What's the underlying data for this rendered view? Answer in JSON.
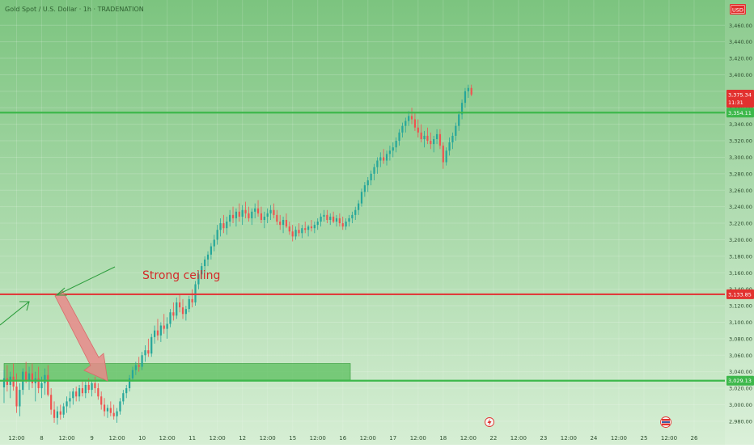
{
  "header": {
    "symbol_title": "Gold Spot / U.S. Dollar · 1h · TRADENATION",
    "currency_badge": "USD"
  },
  "events": {
    "flash_icon": "lightning-icon",
    "flag_icon": "flag-icon"
  },
  "colors": {
    "background_top": "#7cc47f",
    "background_bottom": "#d6eed4",
    "candle_up": "#26a69a",
    "candle_down": "#ef5350",
    "support_line": "#3db84b",
    "resistance_line": "#e03c3c",
    "price_badge_red": "#e2312f",
    "price_badge_green": "#3db84b",
    "zone_fill": "#5bbf5e",
    "arrow_fill": "#e88a8a",
    "trend_arrow": "#2e9e3e",
    "annotation_text": "#d42a2a"
  },
  "chart_data": {
    "type": "candlestick",
    "title": "Gold Spot / U.S. Dollar · 1h · TRADENATION",
    "currency": "USD",
    "xlabel": "",
    "ylabel": "",
    "ylim": [
      2973,
      3473
    ],
    "y_ticks": [
      2980,
      3000,
      3020,
      3040,
      3060,
      3080,
      3100,
      3120,
      3140,
      3160,
      3180,
      3200,
      3220,
      3240,
      3260,
      3280,
      3300,
      3320,
      3340,
      3360,
      3380,
      3400,
      3420,
      3440,
      3460
    ],
    "y_tick_labels": [
      "2,980.00",
      "3,000.00",
      "3,020.00",
      "3,040.00",
      "3,060.00",
      "3,080.00",
      "3,100.00",
      "3,120.00",
      "3,140.00",
      "3,160.00",
      "3,180.00",
      "3,200.00",
      "3,220.00",
      "3,240.00",
      "3,260.00",
      "3,280.00",
      "3,300.00",
      "3,320.00",
      "3,340.00",
      "3,360.00",
      "3,380.00",
      "3,400.00",
      "3,420.00",
      "3,440.00",
      "3,460.00"
    ],
    "x_tick_labels": [
      "12:00",
      "8",
      "12:00",
      "9",
      "12:00",
      "10",
      "12:00",
      "11",
      "12:00",
      "12",
      "12:00",
      "15",
      "12:00",
      "16",
      "12:00",
      "17",
      "12:00",
      "18",
      "12:00",
      "22",
      "12:00",
      "23",
      "12:00",
      "24",
      "12:00",
      "25",
      "12:00",
      "26"
    ],
    "x_tick_index": [
      1,
      3,
      5,
      7,
      9,
      11,
      13,
      15,
      17,
      19,
      21,
      23,
      25,
      27,
      29,
      31,
      33,
      35,
      37,
      39,
      41,
      43,
      45,
      47,
      49,
      51,
      53,
      55
    ],
    "x_range": [
      0,
      57
    ],
    "current_price_label": "3,375.34",
    "countdown_label": "11:31",
    "levels": [
      {
        "name": "support",
        "value": 3354.11,
        "label": "3,354.11",
        "color": "#3db84b"
      },
      {
        "name": "resistance",
        "value": 3133.85,
        "label": "3,133.85",
        "color": "#e03c3c"
      },
      {
        "name": "base",
        "value": 3029.13,
        "label": "3,029.13",
        "color": "#3db84b"
      }
    ],
    "zone": {
      "from_x": 0,
      "to_x": 27.6,
      "y_low": 3030,
      "y_high": 3050
    },
    "annotation": {
      "text": "Strong ceiling",
      "x": 11.0,
      "y": 3160
    },
    "candles": [
      [
        0.0,
        3021,
        3042,
        3002,
        3032
      ],
      [
        0.25,
        3032,
        3048,
        3016,
        3024
      ],
      [
        0.5,
        3024,
        3040,
        3008,
        3034
      ],
      [
        0.75,
        3034,
        3050,
        3017,
        3022
      ],
      [
        1.0,
        3022,
        3038,
        2990,
        2998
      ],
      [
        1.25,
        2998,
        3026,
        2986,
        3018
      ],
      [
        1.5,
        3018,
        3044,
        3012,
        3040
      ],
      [
        1.75,
        3040,
        3052,
        3026,
        3030
      ],
      [
        2.0,
        3030,
        3046,
        3018,
        3038
      ],
      [
        2.25,
        3038,
        3050,
        3020,
        3026
      ],
      [
        2.5,
        3026,
        3040,
        3004,
        3032
      ],
      [
        2.75,
        3032,
        3046,
        3014,
        3020
      ],
      [
        3.0,
        3020,
        3034,
        3008,
        3026
      ],
      [
        3.25,
        3026,
        3044,
        3012,
        3036
      ],
      [
        3.5,
        3036,
        3048,
        3010,
        3012
      ],
      [
        3.75,
        3012,
        3020,
        2988,
        2994
      ],
      [
        4.0,
        2994,
        3004,
        2978,
        2984
      ],
      [
        4.25,
        2984,
        2998,
        2976,
        2992
      ],
      [
        4.5,
        2992,
        3000,
        2982,
        2988
      ],
      [
        4.75,
        2988,
        3002,
        2984,
        2998
      ],
      [
        5.0,
        2998,
        3010,
        2990,
        3004
      ],
      [
        5.25,
        3004,
        3016,
        2996,
        3008
      ],
      [
        5.5,
        3008,
        3020,
        3000,
        3016
      ],
      [
        5.75,
        3016,
        3022,
        3004,
        3010
      ],
      [
        6.0,
        3010,
        3024,
        3004,
        3020
      ],
      [
        6.25,
        3020,
        3028,
        3010,
        3014
      ],
      [
        6.5,
        3014,
        3028,
        3008,
        3024
      ],
      [
        6.75,
        3024,
        3032,
        3014,
        3018
      ],
      [
        7.0,
        3018,
        3030,
        3010,
        3026
      ],
      [
        7.25,
        3026,
        3034,
        3014,
        3020
      ],
      [
        7.5,
        3020,
        3026,
        3006,
        3010
      ],
      [
        7.75,
        3010,
        3016,
        2994,
        3000
      ],
      [
        8.0,
        3000,
        3008,
        2986,
        2992
      ],
      [
        8.25,
        2992,
        3000,
        2984,
        2996
      ],
      [
        8.5,
        2996,
        3004,
        2986,
        2990
      ],
      [
        8.75,
        2990,
        3000,
        2982,
        2986
      ],
      [
        9.0,
        2986,
        2996,
        2978,
        2992
      ],
      [
        9.25,
        2992,
        3008,
        2988,
        3004
      ],
      [
        9.5,
        3004,
        3018,
        3000,
        3014
      ],
      [
        9.75,
        3014,
        3024,
        3008,
        3020
      ],
      [
        10.0,
        3020,
        3036,
        3016,
        3032
      ],
      [
        10.25,
        3032,
        3046,
        3028,
        3042
      ],
      [
        10.5,
        3042,
        3052,
        3036,
        3048
      ],
      [
        10.75,
        3048,
        3058,
        3040,
        3046
      ],
      [
        11.0,
        3046,
        3064,
        3042,
        3060
      ],
      [
        11.25,
        3060,
        3072,
        3052,
        3066
      ],
      [
        11.5,
        3066,
        3080,
        3058,
        3062
      ],
      [
        11.75,
        3062,
        3086,
        3058,
        3082
      ],
      [
        12.0,
        3082,
        3096,
        3074,
        3090
      ],
      [
        12.25,
        3090,
        3104,
        3078,
        3084
      ],
      [
        12.5,
        3084,
        3100,
        3076,
        3096
      ],
      [
        12.75,
        3096,
        3110,
        3086,
        3092
      ],
      [
        13.0,
        3092,
        3106,
        3080,
        3098
      ],
      [
        13.25,
        3098,
        3116,
        3094,
        3112
      ],
      [
        13.5,
        3112,
        3124,
        3102,
        3108
      ],
      [
        13.75,
        3108,
        3130,
        3104,
        3124
      ],
      [
        14.0,
        3124,
        3134,
        3112,
        3118
      ],
      [
        14.25,
        3118,
        3128,
        3104,
        3110
      ],
      [
        14.5,
        3110,
        3120,
        3102,
        3116
      ],
      [
        14.75,
        3116,
        3132,
        3112,
        3128
      ],
      [
        15.0,
        3128,
        3140,
        3118,
        3124
      ],
      [
        15.25,
        3124,
        3150,
        3120,
        3146
      ],
      [
        15.5,
        3146,
        3162,
        3140,
        3158
      ],
      [
        15.75,
        3158,
        3172,
        3152,
        3168
      ],
      [
        16.0,
        3168,
        3180,
        3160,
        3176
      ],
      [
        16.25,
        3176,
        3186,
        3168,
        3182
      ],
      [
        16.5,
        3182,
        3196,
        3176,
        3192
      ],
      [
        16.75,
        3192,
        3206,
        3186,
        3200
      ],
      [
        17.0,
        3200,
        3218,
        3194,
        3212
      ],
      [
        17.25,
        3212,
        3226,
        3204,
        3220
      ],
      [
        17.5,
        3220,
        3230,
        3208,
        3214
      ],
      [
        17.75,
        3214,
        3228,
        3206,
        3222
      ],
      [
        18.0,
        3222,
        3236,
        3216,
        3230
      ],
      [
        18.25,
        3230,
        3240,
        3220,
        3226
      ],
      [
        18.5,
        3226,
        3238,
        3216,
        3234
      ],
      [
        18.75,
        3234,
        3244,
        3222,
        3228
      ],
      [
        19.0,
        3228,
        3242,
        3218,
        3236
      ],
      [
        19.25,
        3236,
        3246,
        3226,
        3232
      ],
      [
        19.5,
        3232,
        3240,
        3222,
        3226
      ],
      [
        19.75,
        3226,
        3238,
        3218,
        3234
      ],
      [
        20.0,
        3234,
        3244,
        3226,
        3238
      ],
      [
        20.25,
        3238,
        3248,
        3228,
        3232
      ],
      [
        20.5,
        3232,
        3240,
        3220,
        3224
      ],
      [
        20.75,
        3224,
        3234,
        3214,
        3228
      ],
      [
        21.0,
        3228,
        3238,
        3220,
        3232
      ],
      [
        21.25,
        3232,
        3242,
        3224,
        3236
      ],
      [
        21.5,
        3236,
        3244,
        3226,
        3230
      ],
      [
        21.75,
        3230,
        3236,
        3218,
        3222
      ],
      [
        22.0,
        3222,
        3230,
        3212,
        3218
      ],
      [
        22.25,
        3218,
        3228,
        3208,
        3224
      ],
      [
        22.5,
        3224,
        3232,
        3214,
        3216
      ],
      [
        22.75,
        3216,
        3222,
        3206,
        3210
      ],
      [
        23.0,
        3210,
        3218,
        3198,
        3204
      ],
      [
        23.25,
        3204,
        3216,
        3200,
        3212
      ],
      [
        23.5,
        3212,
        3220,
        3204,
        3208
      ],
      [
        23.75,
        3208,
        3218,
        3202,
        3214
      ],
      [
        24.0,
        3214,
        3222,
        3208,
        3212
      ],
      [
        24.25,
        3212,
        3218,
        3204,
        3216
      ],
      [
        24.5,
        3216,
        3224,
        3210,
        3214
      ],
      [
        24.75,
        3214,
        3222,
        3208,
        3218
      ],
      [
        25.0,
        3218,
        3226,
        3212,
        3222
      ],
      [
        25.25,
        3222,
        3232,
        3216,
        3228
      ],
      [
        25.5,
        3228,
        3236,
        3222,
        3230
      ],
      [
        25.75,
        3230,
        3236,
        3220,
        3224
      ],
      [
        26.0,
        3224,
        3232,
        3218,
        3228
      ],
      [
        26.25,
        3228,
        3234,
        3220,
        3222
      ],
      [
        26.5,
        3222,
        3230,
        3216,
        3226
      ],
      [
        26.75,
        3226,
        3232,
        3216,
        3220
      ],
      [
        27.0,
        3220,
        3228,
        3212,
        3216
      ],
      [
        27.25,
        3216,
        3226,
        3212,
        3222
      ],
      [
        27.5,
        3222,
        3230,
        3216,
        3226
      ],
      [
        27.75,
        3226,
        3234,
        3220,
        3230
      ],
      [
        28.0,
        3230,
        3240,
        3224,
        3236
      ],
      [
        28.25,
        3236,
        3248,
        3230,
        3244
      ],
      [
        28.5,
        3244,
        3262,
        3240,
        3258
      ],
      [
        28.75,
        3258,
        3270,
        3252,
        3266
      ],
      [
        29.0,
        3266,
        3276,
        3258,
        3272
      ],
      [
        29.25,
        3272,
        3284,
        3266,
        3280
      ],
      [
        29.5,
        3280,
        3292,
        3272,
        3288
      ],
      [
        29.75,
        3288,
        3300,
        3280,
        3296
      ],
      [
        30.0,
        3296,
        3306,
        3288,
        3300
      ],
      [
        30.25,
        3300,
        3310,
        3292,
        3296
      ],
      [
        30.5,
        3296,
        3308,
        3290,
        3304
      ],
      [
        30.75,
        3304,
        3314,
        3296,
        3308
      ],
      [
        31.0,
        3308,
        3318,
        3300,
        3312
      ],
      [
        31.25,
        3312,
        3324,
        3306,
        3320
      ],
      [
        31.5,
        3320,
        3334,
        3314,
        3330
      ],
      [
        31.75,
        3330,
        3342,
        3324,
        3338
      ],
      [
        32.0,
        3338,
        3348,
        3330,
        3344
      ],
      [
        32.25,
        3344,
        3356,
        3338,
        3350
      ],
      [
        32.5,
        3350,
        3360,
        3340,
        3346
      ],
      [
        32.75,
        3346,
        3354,
        3332,
        3336
      ],
      [
        33.0,
        3336,
        3346,
        3324,
        3330
      ],
      [
        33.25,
        3330,
        3340,
        3318,
        3322
      ],
      [
        33.5,
        3322,
        3332,
        3312,
        3326
      ],
      [
        33.75,
        3326,
        3336,
        3316,
        3320
      ],
      [
        34.0,
        3320,
        3330,
        3310,
        3316
      ],
      [
        34.25,
        3316,
        3326,
        3306,
        3322
      ],
      [
        34.5,
        3322,
        3334,
        3316,
        3328
      ],
      [
        34.75,
        3328,
        3334,
        3310,
        3314
      ],
      [
        35.0,
        3314,
        3318,
        3286,
        3294
      ],
      [
        35.25,
        3294,
        3312,
        3290,
        3308
      ],
      [
        35.5,
        3308,
        3324,
        3302,
        3318
      ],
      [
        35.75,
        3318,
        3330,
        3310,
        3326
      ],
      [
        36.0,
        3326,
        3342,
        3320,
        3338
      ],
      [
        36.25,
        3338,
        3356,
        3332,
        3352
      ],
      [
        36.5,
        3352,
        3370,
        3346,
        3366
      ],
      [
        36.75,
        3366,
        3384,
        3360,
        3380
      ],
      [
        37.0,
        3380,
        3388,
        3372,
        3384
      ],
      [
        37.25,
        3384,
        3388,
        3374,
        3376
      ]
    ]
  }
}
